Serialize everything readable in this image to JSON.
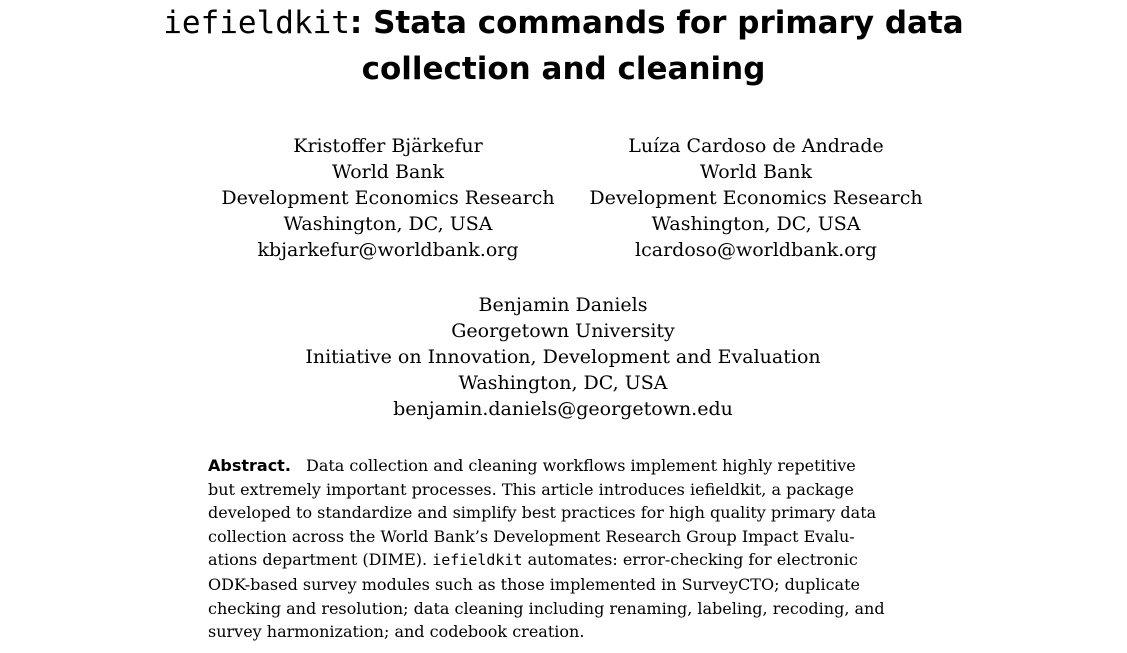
{
  "title": {
    "command": "iefieldkit",
    "rest_line1": ": Stata commands for primary data",
    "line2": "collection and cleaning"
  },
  "authors": [
    {
      "name": "Kristoffer Bjärkefur",
      "org": "World Bank",
      "dept": "Development Economics Research",
      "location": "Washington, DC, USA",
      "email": "kbjarkefur@worldbank.org"
    },
    {
      "name": "Luíza Cardoso de Andrade",
      "org": "World Bank",
      "dept": "Development Economics Research",
      "location": "Washington, DC, USA",
      "email": "lcardoso@worldbank.org"
    },
    {
      "name": "Benjamin Daniels",
      "org": "Georgetown University",
      "dept": "Initiative on Innovation, Development and Evaluation",
      "location": "Washington, DC, USA",
      "email": "benjamin.daniels@georgetown.edu"
    }
  ],
  "abstract": {
    "label": "Abstract.",
    "line1": "Data collection and cleaning workflows implement highly repetitive",
    "line2": "but extremely important processes. This article introduces iefieldkit, a package",
    "line3": "developed to standardize and simplify best practices for high quality primary data",
    "line4": "collection across the World Bank’s Development Research Group Impact Evalu-",
    "line5_pre": "ations department (DIME). ",
    "line5_code": "iefieldkit",
    "line5_post": " automates: error-checking for electronic",
    "line6": "ODK-based survey modules such as those implemented in SurveyCTO; duplicate",
    "line7": "checking and resolution; data cleaning including renaming, labeling, recoding, and",
    "line8": "survey harmonization; and codebook creation."
  }
}
